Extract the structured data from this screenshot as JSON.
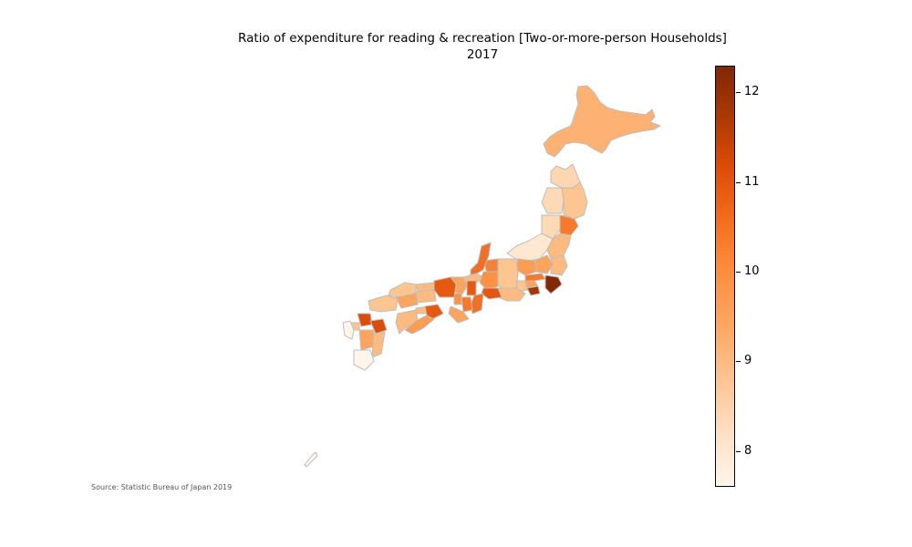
{
  "title_line1": "Ratio of expenditure for reading & recreation [Two-or-more-person Households]",
  "title_line2": "2017",
  "source": "Source: Statistic Bureau of Japan 2019",
  "colorbar": {
    "colormap": "Oranges",
    "min": 7.6,
    "max": 12.3,
    "ticks": [
      "8",
      "9",
      "10",
      "11",
      "12"
    ]
  },
  "colors": {
    "border": "#bdbdbd",
    "low": "#fff5eb",
    "high": "#7f2704"
  }
}
